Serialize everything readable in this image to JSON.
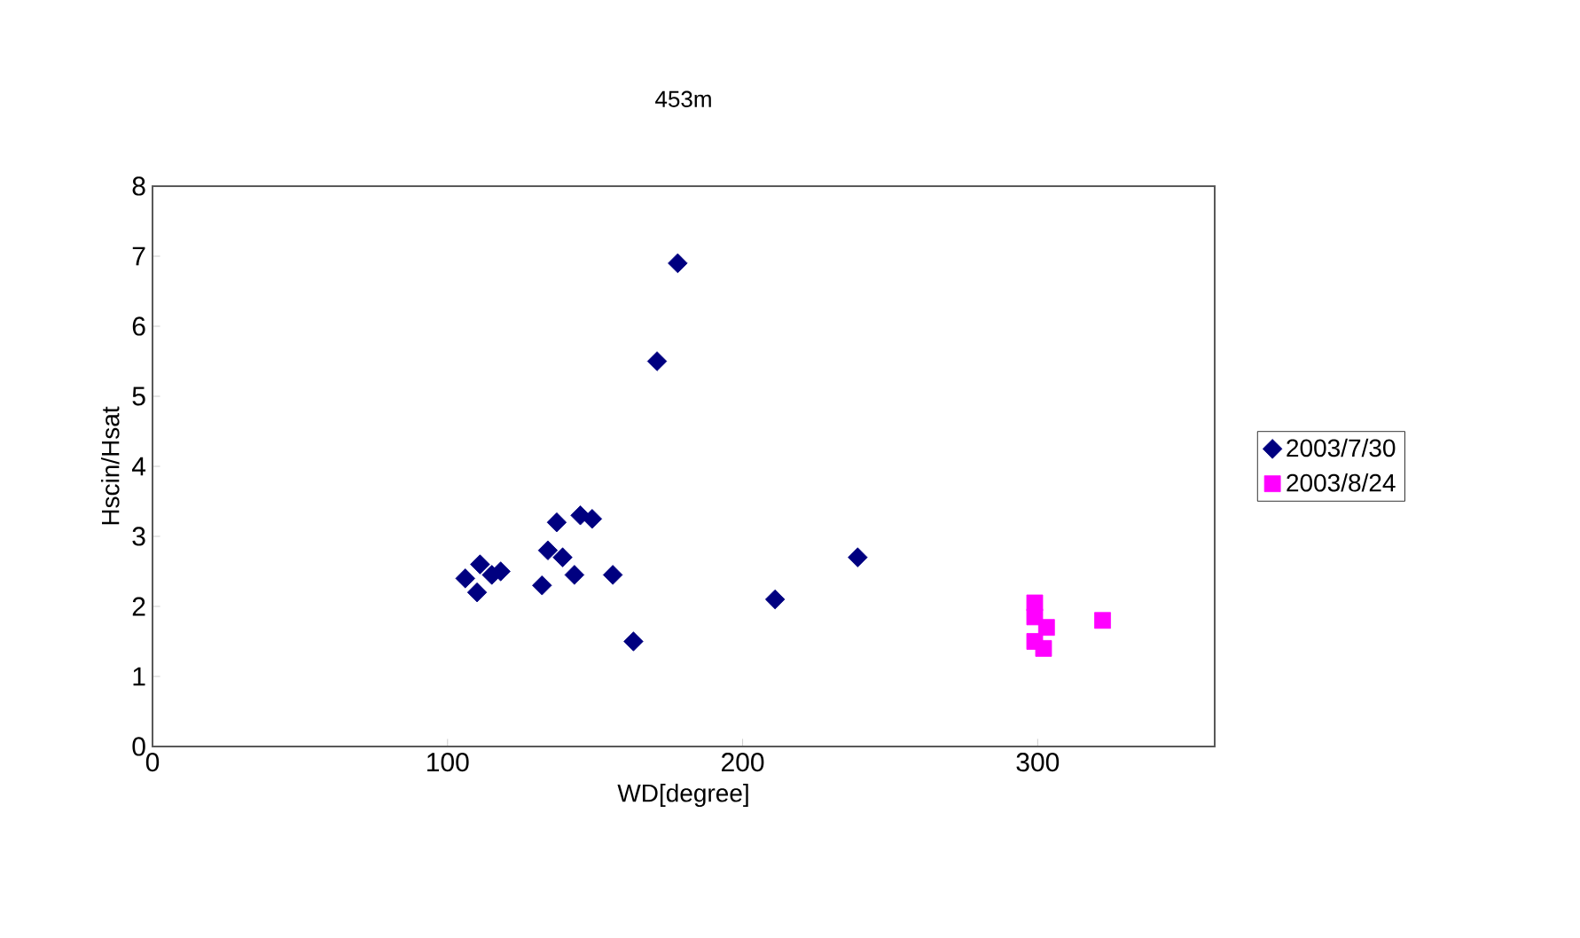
{
  "chart_data": {
    "type": "scatter",
    "title": "453m",
    "xlabel": "WD[degree]",
    "ylabel": "Hscin/Hsat",
    "xlim": [
      0,
      360
    ],
    "xticks": [
      0,
      100,
      200,
      300
    ],
    "ylim": [
      0,
      8
    ],
    "yticks": [
      0,
      1,
      2,
      3,
      4,
      5,
      6,
      7,
      8
    ],
    "legend": "right",
    "grid": false,
    "series": [
      {
        "name": "2003/7/30",
        "color": "#000080",
        "marker": "diamond",
        "x": [
          106,
          111,
          110,
          115,
          118,
          132,
          134,
          137,
          139,
          143,
          145,
          149,
          156,
          163,
          171,
          178,
          211,
          239
        ],
        "values": [
          2.4,
          2.6,
          2.2,
          2.45,
          2.5,
          2.3,
          2.8,
          3.2,
          2.7,
          2.45,
          3.3,
          3.25,
          2.45,
          1.5,
          5.5,
          6.9,
          2.1,
          2.7
        ]
      },
      {
        "name": "2003/8/24",
        "color": "#ff00ff",
        "marker": "square",
        "x": [
          299,
          299,
          303,
          299,
          302,
          322
        ],
        "values": [
          2.05,
          1.85,
          1.7,
          1.5,
          1.4,
          1.8
        ]
      }
    ]
  }
}
